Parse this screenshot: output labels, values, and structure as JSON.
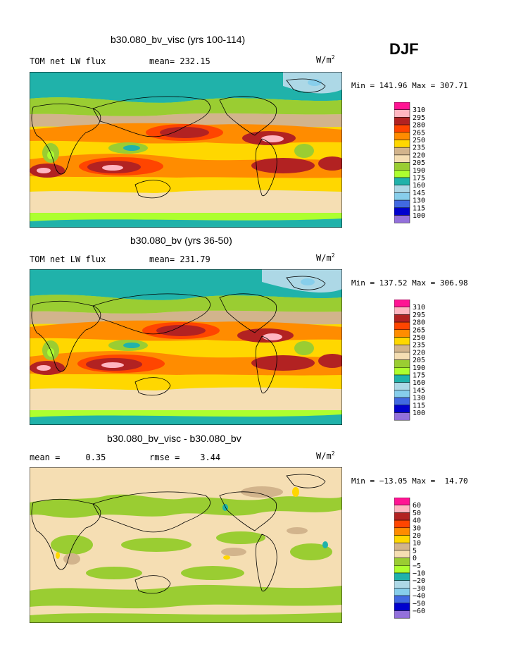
{
  "season": "DJF",
  "palette": {
    "magenta": "#ff1493",
    "pink": "#ffb6c1",
    "darkred": "#b22222",
    "orangered": "#ff4500",
    "orange": "#ff8c00",
    "gold": "#ffd700",
    "tan": "#d2b48c",
    "beige": "#f5deb3",
    "olive": "#9acd32",
    "lightgreen": "#adff2f",
    "teal": "#20b2aa",
    "lightblue": "#add8e6",
    "skyblue": "#87ceeb",
    "royalblue": "#4169e1",
    "blue": "#0000cd",
    "purple": "#9370db"
  },
  "panels": [
    {
      "title": "b30.080_bv_visc (yrs 100-114)",
      "left_label": "TOM net LW flux",
      "mid_label": "mean= 232.15",
      "units": "W/m",
      "units_sup": "2",
      "minmax": "Min = 141.96 Max = 307.71",
      "legend": [
        "310",
        "295",
        "280",
        "265",
        "250",
        "235",
        "220",
        "205",
        "190",
        "175",
        "160",
        "145",
        "130",
        "115",
        "100"
      ]
    },
    {
      "title": "b30.080_bv (yrs 36-50)",
      "left_label": "TOM net LW flux",
      "mid_label": "mean= 231.79",
      "units": "W/m",
      "units_sup": "2",
      "minmax": "Min = 137.52 Max = 306.98",
      "legend": [
        "310",
        "295",
        "280",
        "265",
        "250",
        "235",
        "220",
        "205",
        "190",
        "175",
        "160",
        "145",
        "130",
        "115",
        "100"
      ]
    },
    {
      "title": "b30.080_bv_visc - b30.080_bv",
      "left_label": "mean =     0.35",
      "mid_label": "rmse =    3.44",
      "units": "W/m",
      "units_sup": "2",
      "minmax": "Min = −13.05 Max =  14.70",
      "legend": [
        "60",
        "50",
        "40",
        "30",
        "20",
        "10",
        "5",
        "0",
        "−5",
        "−10",
        "−20",
        "−30",
        "−40",
        "−50",
        "−60"
      ]
    }
  ],
  "chart_data": [
    {
      "type": "heatmap",
      "title": "b30.080_bv_visc (yrs 100-114)",
      "variable": "TOM net LW flux",
      "units": "W/m2",
      "mean": 232.15,
      "min": 141.96,
      "max": 307.71,
      "contour_levels": [
        100,
        115,
        130,
        145,
        160,
        175,
        190,
        205,
        220,
        235,
        250,
        265,
        280,
        295,
        310
      ]
    },
    {
      "type": "heatmap",
      "title": "b30.080_bv (yrs 36-50)",
      "variable": "TOM net LW flux",
      "units": "W/m2",
      "mean": 231.79,
      "min": 137.52,
      "max": 306.98,
      "contour_levels": [
        100,
        115,
        130,
        145,
        160,
        175,
        190,
        205,
        220,
        235,
        250,
        265,
        280,
        295,
        310
      ]
    },
    {
      "type": "heatmap",
      "title": "b30.080_bv_visc - b30.080_bv",
      "units": "W/m2",
      "mean": 0.35,
      "rmse": 3.44,
      "min": -13.05,
      "max": 14.7,
      "contour_levels": [
        -60,
        -50,
        -40,
        -30,
        -20,
        -10,
        -5,
        0,
        5,
        10,
        20,
        30,
        40,
        50,
        60
      ]
    }
  ]
}
